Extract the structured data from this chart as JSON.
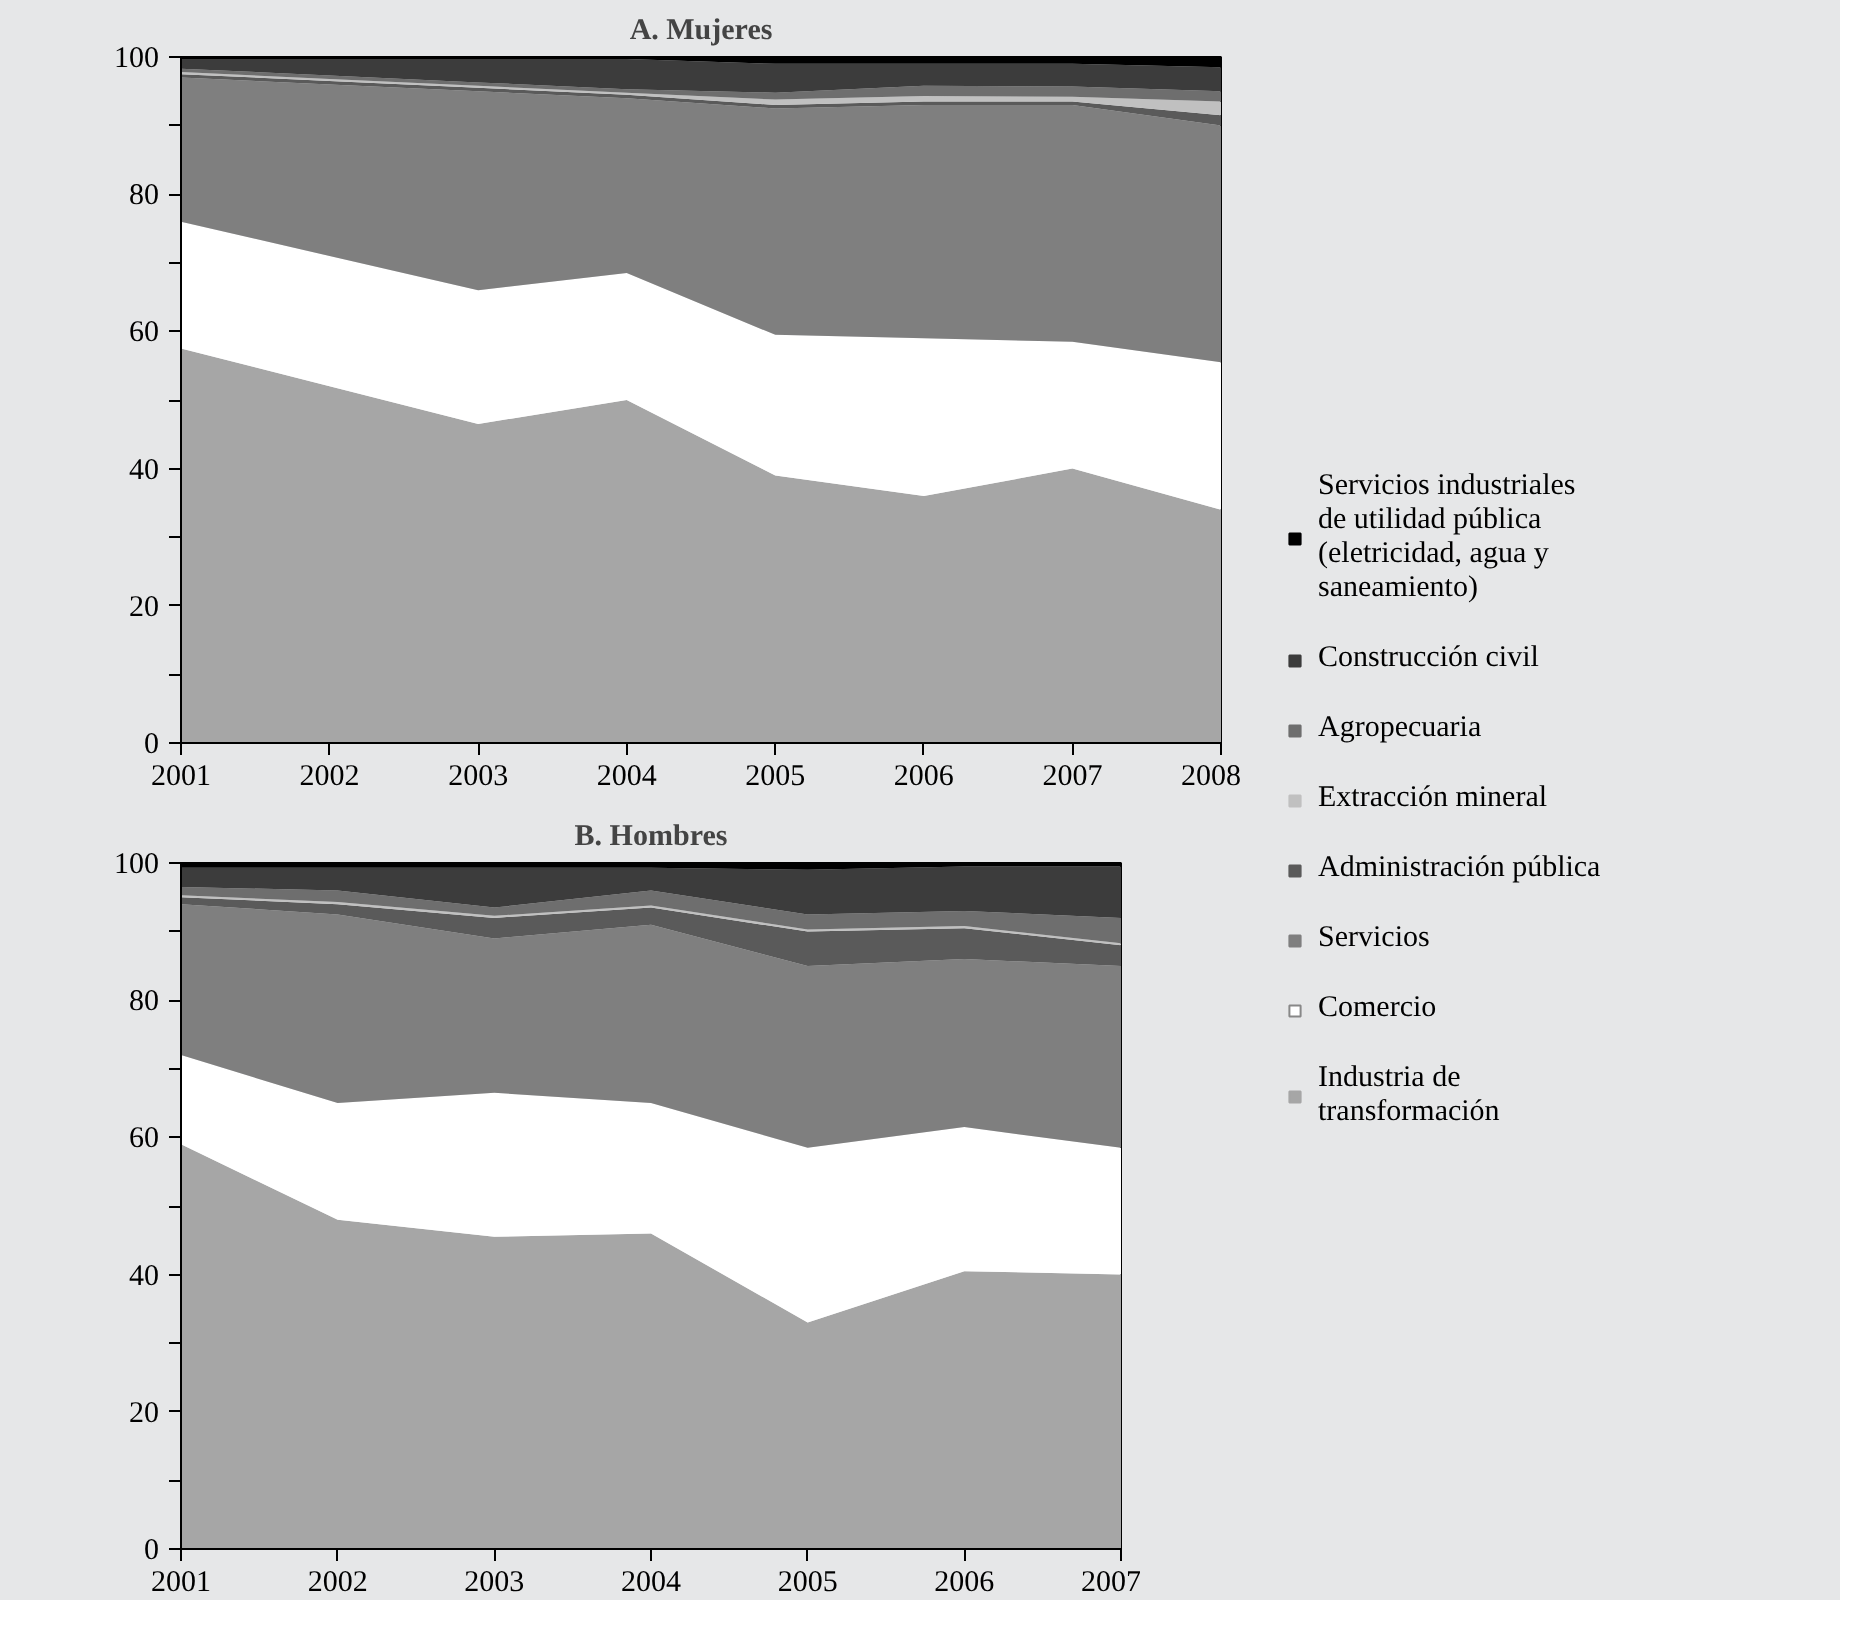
{
  "chart_data": [
    {
      "type": "area",
      "stacked": true,
      "title": "A. Mujeres",
      "x": [
        2001,
        2002,
        2003,
        2004,
        2005,
        2006,
        2007,
        2008
      ],
      "xlim": [
        2001,
        2008
      ],
      "xticks": [
        2001,
        2002,
        2003,
        2004,
        2005,
        2006,
        2007,
        2008
      ],
      "ylim": [
        0,
        100
      ],
      "yticks": [
        0,
        {
          "value": 10,
          "label": null
        },
        20,
        {
          "value": 30,
          "label": null
        },
        40,
        {
          "value": 50,
          "label": null
        },
        60,
        {
          "value": 70,
          "label": null
        },
        80,
        {
          "value": 90,
          "label": null
        },
        100
      ],
      "grid": false,
      "legend": "right",
      "series": [
        {
          "name": "Industria de transformación",
          "color": "#a6a6a6",
          "values": [
            57.5,
            52,
            46.5,
            50,
            39,
            36,
            40,
            34
          ]
        },
        {
          "name": "Comercio",
          "color": "#ffffff",
          "values": [
            18.5,
            19,
            19.5,
            18.5,
            20.5,
            23,
            18.5,
            21.5
          ]
        },
        {
          "name": "Servicios",
          "color": "#7f7f7f",
          "values": [
            21,
            25,
            29,
            25.5,
            33,
            34,
            34.5,
            34.5
          ]
        },
        {
          "name": "Administración pública",
          "color": "#5a5a5a",
          "values": [
            0.5,
            0.5,
            0.5,
            0.5,
            0.5,
            0.5,
            0.5,
            1.5
          ]
        },
        {
          "name": "Extracción mineral",
          "color": "#c0c0c0",
          "values": [
            0.3,
            0.3,
            0.3,
            0.3,
            0.8,
            0.8,
            0.7,
            2
          ]
        },
        {
          "name": "Agropecuaria",
          "color": "#6e6e6e",
          "values": [
            0.5,
            0.5,
            0.5,
            0.5,
            1,
            1.5,
            1.5,
            1.5
          ]
        },
        {
          "name": "Construcción civil",
          "color": "#3c3c3c",
          "values": [
            1.4,
            2.4,
            3.4,
            4.4,
            4.2,
            3.2,
            3.3,
            3.5
          ]
        },
        {
          "name": "Servicios industriales de utilidad pública (eletricidad, agua y saneamiento)",
          "color": "#000000",
          "values": [
            0.3,
            0.3,
            0.3,
            0.3,
            1,
            1,
            1,
            1.5
          ]
        }
      ]
    },
    {
      "type": "area",
      "stacked": true,
      "title": "B. Hombres",
      "x": [
        2001,
        2002,
        2003,
        2004,
        2005,
        2006,
        2007
      ],
      "xlim": [
        2001,
        2007
      ],
      "xticks": [
        2001,
        2002,
        2003,
        2004,
        2005,
        2006,
        2007
      ],
      "ylim": [
        0,
        100
      ],
      "yticks": [
        0,
        {
          "value": 10,
          "label": null
        },
        20,
        {
          "value": 30,
          "label": null
        },
        40,
        {
          "value": 50,
          "label": null
        },
        60,
        {
          "value": 70,
          "label": null
        },
        80,
        {
          "value": 90,
          "label": null
        },
        100
      ],
      "grid": false,
      "series": [
        {
          "color": "#a6a6a6",
          "values": [
            59,
            48,
            45.5,
            46,
            33,
            40.5,
            40
          ]
        },
        {
          "color": "#ffffff",
          "values": [
            13,
            17,
            21,
            19,
            25.5,
            21,
            18.5
          ]
        },
        {
          "color": "#7f7f7f",
          "values": [
            22,
            27.5,
            22.5,
            26,
            26.5,
            24.5,
            26.5
          ]
        },
        {
          "color": "#5a5a5a",
          "values": [
            1,
            1.5,
            3,
            2.5,
            5,
            4.5,
            3
          ]
        },
        {
          "color": "#c0c0c0",
          "values": [
            0.3,
            0.3,
            0.3,
            0.3,
            0.3,
            0.3,
            0.3
          ]
        },
        {
          "color": "#6e6e6e",
          "values": [
            1.2,
            1.7,
            1.2,
            2.2,
            2.2,
            2.2,
            3.7
          ]
        },
        {
          "color": "#3c3c3c",
          "values": [
            2.8,
            3.3,
            5.8,
            3.3,
            6.5,
            6.5,
            7.5
          ]
        },
        {
          "color": "#000000",
          "values": [
            0.7,
            0.7,
            0.7,
            0.7,
            1,
            0.5,
            0.5
          ]
        }
      ]
    }
  ]
}
